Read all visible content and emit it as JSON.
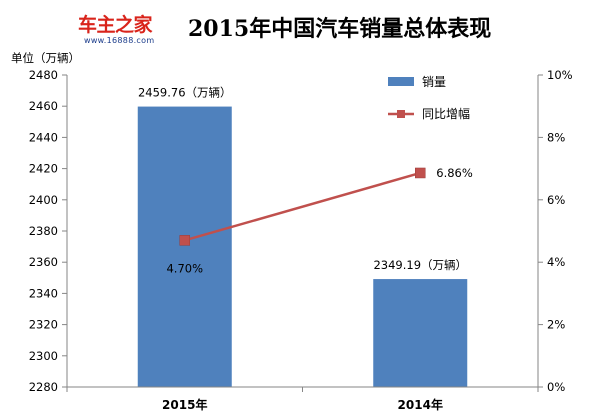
{
  "header": {
    "logo_text": "车主之家",
    "logo_url_text": "www.16888.com",
    "title": "2015年中国汽车销量总体表现"
  },
  "colors": {
    "bar": "#4f81bd",
    "line": "#c0504d",
    "axis": "#868686"
  },
  "chart_data": {
    "type": "bar",
    "categories": [
      "2015年",
      "2014年"
    ],
    "ylabel": "单位（万辆）",
    "ylim": [
      2280,
      2480
    ],
    "yticks": [
      "2280",
      "2300",
      "2320",
      "2340",
      "2360",
      "2380",
      "2400",
      "2420",
      "2440",
      "2460",
      "2480"
    ],
    "y2lim": [
      0,
      10
    ],
    "y2ticks": [
      "0%",
      "2%",
      "4%",
      "6%",
      "8%",
      "10%"
    ],
    "series": [
      {
        "name": "销量",
        "type": "bar",
        "axis": "left",
        "values": [
          2459.76,
          2349.19
        ],
        "labels": [
          "2459.76（万辆）",
          "2349.19（万辆）"
        ]
      },
      {
        "name": "同比增幅",
        "type": "line",
        "axis": "right",
        "values": [
          4.7,
          6.86
        ],
        "labels": [
          "4.70%",
          "6.86%"
        ]
      }
    ],
    "legend": "top-right",
    "grid": false
  }
}
